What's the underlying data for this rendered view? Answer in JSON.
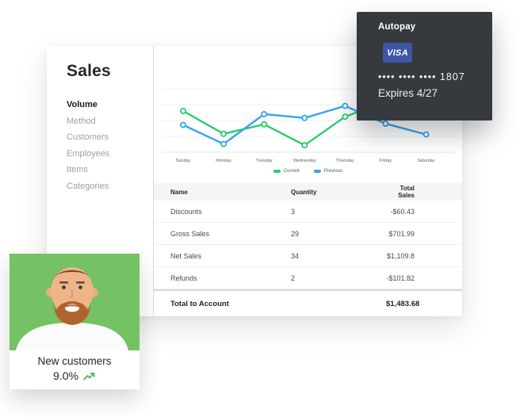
{
  "sales_panel": {
    "title": "Sales",
    "sidebar": {
      "items": [
        {
          "label": "Volume",
          "active": true
        },
        {
          "label": "Method",
          "active": false
        },
        {
          "label": "Customers",
          "active": false
        },
        {
          "label": "Employees",
          "active": false
        },
        {
          "label": "Items",
          "active": false
        },
        {
          "label": "Categories",
          "active": false
        }
      ]
    },
    "table": {
      "columns": [
        "Name",
        "Quantity",
        "Total Sales"
      ],
      "rows": [
        [
          "Discounts",
          "3",
          "-$60.43"
        ],
        [
          "Gross Sales",
          "29",
          "$701.99"
        ],
        [
          "Net Sales",
          "34",
          "$1,109.8"
        ],
        [
          "Refunds",
          "2",
          "-$101.82"
        ]
      ],
      "footer": {
        "label": "Total to Account",
        "value": "$1,483.68"
      }
    }
  },
  "chart_data": {
    "type": "line",
    "categories": [
      "Sunday",
      "Monday",
      "Tuesday",
      "Wednesday",
      "Thursday",
      "Friday",
      "Saturday"
    ],
    "series": [
      {
        "name": "Current",
        "color": "#2fca70",
        "values": [
          65,
          29,
          44,
          11,
          56,
          80,
          90
        ]
      },
      {
        "name": "Previous",
        "color": "#38a3f1",
        "values": [
          43,
          13,
          60,
          54,
          73,
          45,
          28
        ]
      }
    ],
    "ylim": [
      0,
      100
    ],
    "grid": true,
    "legend_position": "bottom"
  },
  "autopay_card": {
    "title": "Autopay",
    "network": "VISA",
    "masked_number": "•••• •••• •••• 1807",
    "expires": "Expires 4/27",
    "colors": {
      "bg": "#36393e",
      "visa_bg": "#3d56a6"
    }
  },
  "customer_card": {
    "label": "New customers",
    "value": "9.0%",
    "trend": "up",
    "accent": "#3cb96a",
    "photo_bg": "#74c263"
  }
}
